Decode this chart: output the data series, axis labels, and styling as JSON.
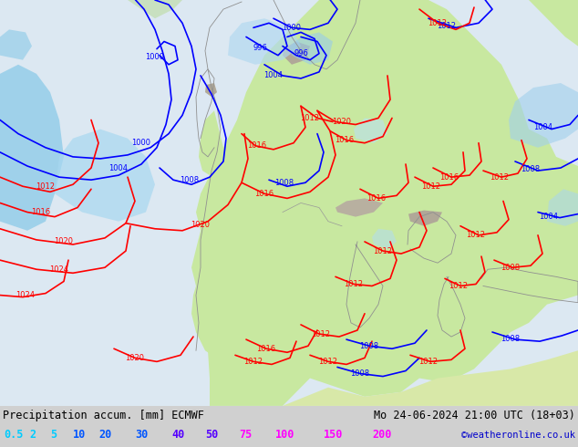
{
  "title_left": "Precipitation accum. [mm] ECMWF",
  "title_right": "Mo 24-06-2024 21:00 UTC (18+03)",
  "watermark": "©weatheronline.co.uk",
  "legend_values": [
    "0.5",
    "2",
    "5",
    "10",
    "20",
    "30",
    "40",
    "50",
    "75",
    "100",
    "150",
    "200"
  ],
  "legend_colors": [
    "#00ccff",
    "#00ccff",
    "#00ccff",
    "#0055ff",
    "#0055ff",
    "#0055ff",
    "#5500ff",
    "#5500ff",
    "#ff00ff",
    "#ff00ff",
    "#ff00ff",
    "#ff00ff"
  ],
  "bg_color_land": "#c8e8a0",
  "bg_color_sea": "#e8f0f8",
  "bg_color_ocean": "#dce8f0",
  "mountain_color": "#a8a090",
  "precip_light": "#a0d8f0",
  "precip_medium": "#70c0e8",
  "footer_bg": "#d0d0d0",
  "figsize": [
    6.34,
    4.9
  ],
  "dpi": 100
}
